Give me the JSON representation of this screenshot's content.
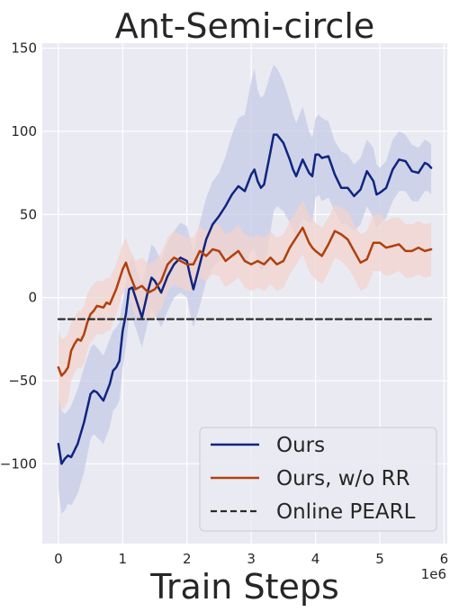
{
  "chart_data": {
    "type": "line",
    "title": "Ant-Semi-circle",
    "xlabel": "Train Steps",
    "ylabel": "",
    "x_offset_label": "1e6",
    "xlim": [
      -0.25,
      6.05
    ],
    "ylim": [
      -148,
      153
    ],
    "xticks": [
      0,
      1,
      2,
      3,
      4,
      5,
      6
    ],
    "xtick_labels": [
      "0",
      "1",
      "2",
      "3",
      "4",
      "5",
      "6"
    ],
    "yticks": [
      -100,
      -50,
      0,
      50,
      100,
      150
    ],
    "ytick_labels": [
      "−100",
      "−50",
      "0",
      "50",
      "100",
      "150"
    ],
    "grid": true,
    "legend_position": "lower-right",
    "background": "#eaeaf2",
    "series": [
      {
        "name": "Ours",
        "color": "#0f2580",
        "band_color": "#c5cbe6",
        "style": "solid",
        "x": [
          0.0,
          0.05,
          0.1,
          0.15,
          0.2,
          0.3,
          0.4,
          0.5,
          0.55,
          0.6,
          0.7,
          0.8,
          0.85,
          0.9,
          0.95,
          1.0,
          1.05,
          1.1,
          1.15,
          1.2,
          1.3,
          1.4,
          1.45,
          1.5,
          1.6,
          1.7,
          1.8,
          1.9,
          2.0,
          2.05,
          2.1,
          2.2,
          2.3,
          2.4,
          2.5,
          2.6,
          2.7,
          2.8,
          2.9,
          3.0,
          3.05,
          3.1,
          3.15,
          3.2,
          3.25,
          3.3,
          3.35,
          3.4,
          3.5,
          3.6,
          3.65,
          3.7,
          3.75,
          3.8,
          3.9,
          3.95,
          4.0,
          4.05,
          4.1,
          4.2,
          4.3,
          4.4,
          4.5,
          4.6,
          4.7,
          4.8,
          4.9,
          4.95,
          5.0,
          5.1,
          5.2,
          5.3,
          5.4,
          5.5,
          5.6,
          5.7,
          5.75,
          5.8
        ],
        "y": [
          -88,
          -100,
          -97,
          -95,
          -96,
          -88,
          -75,
          -58,
          -56,
          -57,
          -62,
          -52,
          -44,
          -42,
          -38,
          -20,
          -10,
          5,
          6,
          0,
          -12,
          5,
          12,
          10,
          3,
          13,
          20,
          24,
          22,
          13,
          5,
          20,
          35,
          44,
          49,
          55,
          62,
          67,
          64,
          74,
          77,
          70,
          66,
          68,
          78,
          88,
          98,
          98,
          93,
          83,
          77,
          73,
          78,
          83,
          75,
          73,
          86,
          86,
          84,
          85,
          74,
          66,
          66,
          61,
          65,
          76,
          70,
          62,
          63,
          66,
          77,
          83,
          82,
          76,
          75,
          81,
          80,
          78
        ],
        "upper": [
          -60,
          -68,
          -70,
          -68,
          -65,
          -55,
          -42,
          -30,
          -28,
          -30,
          -35,
          -25,
          -20,
          -18,
          -15,
          -2,
          8,
          20,
          25,
          18,
          8,
          24,
          32,
          30,
          22,
          33,
          40,
          45,
          43,
          35,
          27,
          45,
          60,
          70,
          75,
          85,
          98,
          108,
          110,
          130,
          138,
          125,
          120,
          122,
          128,
          135,
          140,
          138,
          130,
          118,
          110,
          105,
          110,
          115,
          100,
          96,
          108,
          110,
          108,
          106,
          94,
          88,
          86,
          80,
          84,
          95,
          90,
          80,
          78,
          82,
          95,
          100,
          98,
          92,
          90,
          95,
          94,
          92
        ],
        "lower": [
          -115,
          -130,
          -128,
          -124,
          -125,
          -118,
          -105,
          -85,
          -82,
          -84,
          -88,
          -78,
          -68,
          -66,
          -62,
          -42,
          -30,
          -12,
          -12,
          -18,
          -30,
          -14,
          -6,
          -10,
          -18,
          -8,
          0,
          3,
          0,
          -10,
          -18,
          -5,
          10,
          18,
          22,
          25,
          26,
          27,
          20,
          28,
          30,
          22,
          16,
          18,
          28,
          40,
          52,
          55,
          52,
          45,
          40,
          38,
          43,
          48,
          45,
          45,
          60,
          62,
          58,
          60,
          52,
          44,
          44,
          40,
          44,
          55,
          48,
          42,
          44,
          48,
          58,
          64,
          64,
          58,
          58,
          64,
          64,
          62
        ]
      },
      {
        "name": "Ours, w/o RR",
        "color": "#b0400d",
        "band_color": "#f2d3cc",
        "style": "solid",
        "x": [
          0.0,
          0.05,
          0.1,
          0.15,
          0.2,
          0.25,
          0.3,
          0.35,
          0.4,
          0.45,
          0.5,
          0.55,
          0.6,
          0.7,
          0.75,
          0.8,
          0.9,
          1.0,
          1.05,
          1.1,
          1.2,
          1.3,
          1.4,
          1.5,
          1.6,
          1.7,
          1.8,
          1.9,
          2.0,
          2.1,
          2.2,
          2.3,
          2.4,
          2.5,
          2.6,
          2.7,
          2.8,
          2.9,
          3.0,
          3.1,
          3.2,
          3.3,
          3.4,
          3.5,
          3.6,
          3.7,
          3.8,
          3.9,
          3.95,
          4.0,
          4.1,
          4.2,
          4.3,
          4.4,
          4.5,
          4.6,
          4.7,
          4.8,
          4.9,
          5.0,
          5.1,
          5.2,
          5.3,
          5.4,
          5.5,
          5.6,
          5.7,
          5.8
        ],
        "y": [
          -42,
          -47,
          -45,
          -42,
          -32,
          -28,
          -25,
          -26,
          -22,
          -15,
          -10,
          -8,
          -5,
          -6,
          -3,
          -4,
          5,
          17,
          21,
          15,
          5,
          7,
          3,
          5,
          10,
          20,
          24,
          22,
          20,
          20,
          28,
          25,
          29,
          28,
          22,
          25,
          28,
          22,
          20,
          22,
          20,
          24,
          20,
          22,
          30,
          36,
          42,
          33,
          30,
          28,
          25,
          32,
          40,
          38,
          35,
          28,
          21,
          23,
          33,
          33,
          30,
          31,
          32,
          28,
          28,
          30,
          28,
          29
        ],
        "upper": [
          -20,
          -25,
          -24,
          -22,
          -15,
          -12,
          -8,
          -8,
          -5,
          2,
          6,
          8,
          10,
          10,
          12,
          12,
          20,
          32,
          36,
          30,
          22,
          24,
          20,
          22,
          27,
          36,
          40,
          38,
          36,
          36,
          43,
          40,
          44,
          44,
          38,
          40,
          44,
          38,
          36,
          38,
          36,
          40,
          36,
          38,
          46,
          52,
          58,
          50,
          47,
          45,
          42,
          48,
          56,
          54,
          52,
          44,
          38,
          40,
          50,
          50,
          46,
          48,
          48,
          44,
          44,
          46,
          44,
          45
        ],
        "lower": [
          -62,
          -68,
          -66,
          -62,
          -50,
          -45,
          -42,
          -43,
          -40,
          -32,
          -27,
          -25,
          -22,
          -22,
          -20,
          -20,
          -10,
          2,
          6,
          0,
          -12,
          -10,
          -14,
          -12,
          -7,
          4,
          8,
          6,
          4,
          4,
          12,
          10,
          14,
          13,
          6,
          9,
          12,
          6,
          4,
          6,
          4,
          8,
          4,
          6,
          14,
          20,
          26,
          16,
          13,
          11,
          8,
          15,
          24,
          22,
          18,
          12,
          4,
          6,
          16,
          16,
          13,
          14,
          16,
          12,
          12,
          14,
          12,
          13
        ]
      },
      {
        "name": "Online PEARL",
        "color": "#2b2b2b",
        "style": "dashed",
        "x": [
          0.0,
          5.8
        ],
        "y": [
          -13,
          -13
        ]
      }
    ]
  }
}
